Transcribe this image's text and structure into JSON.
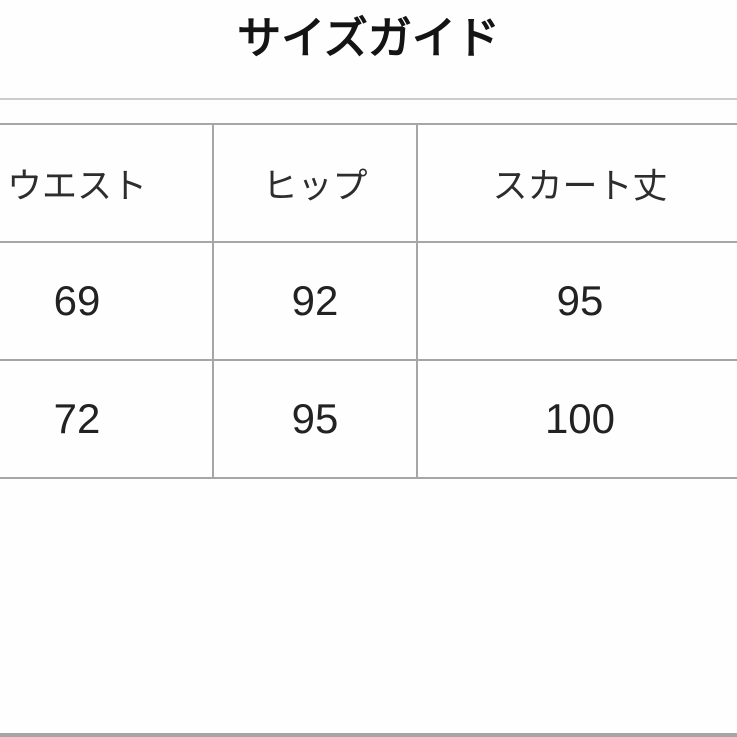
{
  "title": "サイズガイド",
  "table": {
    "headers": [
      "ウエスト",
      "ヒップ",
      "スカート丈"
    ],
    "rows": [
      [
        "69",
        "92",
        "95"
      ],
      [
        "72",
        "95",
        "100"
      ]
    ]
  },
  "chart_data": {
    "type": "table",
    "title": "サイズガイド",
    "columns": [
      "ウエスト",
      "ヒップ",
      "スカート丈"
    ],
    "rows": [
      [
        69,
        92,
        95
      ],
      [
        72,
        95,
        100
      ]
    ],
    "notes": "Size guide table; units (cm) not shown. Table is cropped by image edges on left and right; no outer vertical borders visible."
  },
  "colors": {
    "background": "#fefefe",
    "grid_line": "#a6a6a6",
    "top_rule": "#cccccc",
    "bottom_bar": "#a6a6a6",
    "title_text": "#141414",
    "cell_text": "#262626"
  }
}
